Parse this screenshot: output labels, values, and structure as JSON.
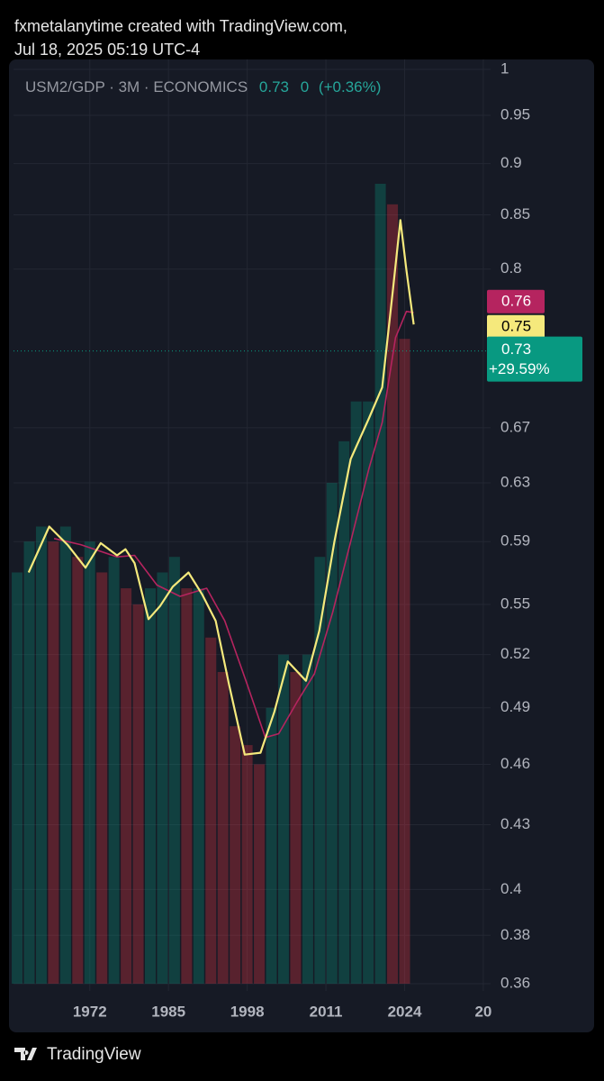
{
  "header": {
    "author_line": "fxmetalanytime created with TradingView.com,",
    "date_line": "Jul 18, 2025 05:19 UTC-4"
  },
  "chart_data": {
    "type": "line",
    "title": "USM2/GDP · 3M · ECONOMICS",
    "log_scale": true,
    "grid": true,
    "legend_value": 0.73,
    "legend_change": 0,
    "legend_change_pct": {
      "value": 0.36,
      "label": "(+0.36%)"
    },
    "last_value": 0.73,
    "last_change": {
      "value": 29.59,
      "label": "+29.59%"
    },
    "last_color": "#089981",
    "xlim": [
      1959.4,
      2038.2
    ],
    "ylim": [
      0.36,
      1
    ],
    "xticks": [
      1972,
      1985,
      1998,
      2011,
      2024,
      {
        "value": 2037,
        "label": "20"
      }
    ],
    "yticks": [
      1,
      0.95,
      0.9,
      0.85,
      0.8,
      0.67,
      0.63,
      0.59,
      0.55,
      0.52,
      0.49,
      0.46,
      0.43,
      0.4,
      0.38,
      0.36
    ],
    "bars": {
      "up_color": "#089981",
      "down_color": "#f23645",
      "x": [
        1960,
        1962,
        1964,
        1966,
        1968,
        1970,
        1972,
        1974,
        1976,
        1978,
        1980,
        1982,
        1984,
        1986,
        1988,
        1990,
        1992,
        1994,
        1996,
        1998,
        2000,
        2002,
        2004,
        2006,
        2008,
        2010,
        2012,
        2014,
        2016,
        2018,
        2020,
        2022,
        2024
      ],
      "values": [
        0.57,
        0.59,
        0.6,
        0.59,
        0.6,
        0.58,
        0.59,
        0.57,
        0.58,
        0.56,
        0.55,
        0.56,
        0.57,
        0.58,
        0.56,
        0.56,
        0.53,
        0.51,
        0.48,
        0.47,
        0.46,
        0.49,
        0.52,
        0.51,
        0.52,
        0.58,
        0.63,
        0.66,
        0.69,
        0.69,
        0.88,
        0.86,
        0.74
      ]
    },
    "series": [
      {
        "color": "#f5e97c",
        "last_label": 0.75,
        "x": [
          1961.9,
          1965.3,
          1968.3,
          1971.3,
          1973.8,
          1976.5,
          1977.9,
          1979.4,
          1981.7,
          1983.6,
          1985.7,
          1988.3,
          1990.6,
          1992.8,
          1995.0,
          1997.6,
          2000.2,
          2002.5,
          2004.7,
          2007.7,
          2009.9,
          2012.4,
          2015.1,
          2018.1,
          2020.3,
          2022.1,
          2023.3,
          2024.3,
          2025.5
        ],
        "values": [
          0.57,
          0.6,
          0.588,
          0.573,
          0.589,
          0.581,
          0.585,
          0.576,
          0.541,
          0.549,
          0.561,
          0.57,
          0.556,
          0.54,
          0.503,
          0.465,
          0.466,
          0.488,
          0.516,
          0.505,
          0.534,
          0.59,
          0.647,
          0.677,
          0.701,
          0.783,
          0.845,
          0.799,
          0.752
        ]
      },
      {
        "color": "#b5245f",
        "last_label": 0.76,
        "x": [
          1966.1,
          1970.5,
          1976.5,
          1979.4,
          1983.1,
          1986.9,
          1991.3,
          1994.3,
          1998.0,
          2001.0,
          2003.2,
          2006.2,
          2009.1,
          2012.1,
          2015.1,
          2018.1,
          2020.3,
          2022.5,
          2024.3,
          2025.5
        ],
        "values": [
          0.592,
          0.588,
          0.58,
          0.581,
          0.562,
          0.555,
          0.56,
          0.54,
          0.503,
          0.474,
          0.476,
          0.493,
          0.509,
          0.545,
          0.59,
          0.64,
          0.674,
          0.741,
          0.763,
          0.762
        ]
      }
    ]
  },
  "footer": {
    "brand": "TradingView"
  }
}
